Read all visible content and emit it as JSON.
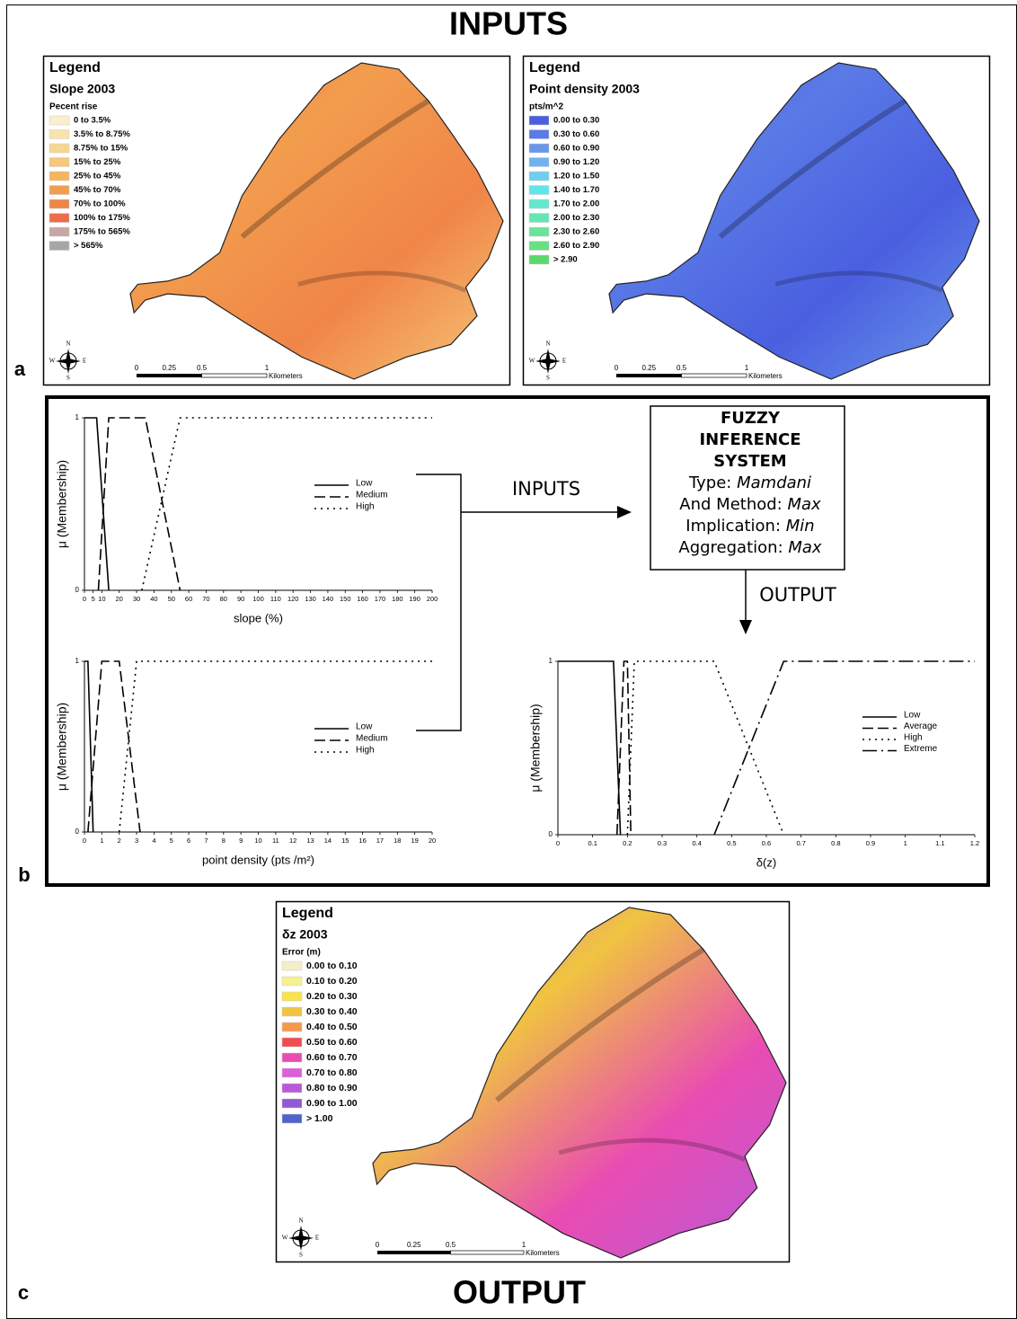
{
  "title": "INPUTS",
  "bottom_title": "OUTPUT",
  "panel_labels": [
    "a",
    "b",
    "c"
  ],
  "maps": [
    {
      "legend_title": "Legend",
      "layer_title": "Slope 2003",
      "unit": "Pecent rise",
      "classes": [
        {
          "label": "0 to 3.5%",
          "color": "#fbeecb"
        },
        {
          "label": "3.5% to 8.75%",
          "color": "#fae3a8"
        },
        {
          "label": "8.75% to 15%",
          "color": "#f8d690"
        },
        {
          "label": "15% to 25%",
          "color": "#f6c877"
        },
        {
          "label": "25% to 45%",
          "color": "#f4b55d"
        },
        {
          "label": "45% to 70%",
          "color": "#f29d4e"
        },
        {
          "label": "70% to 100%",
          "color": "#f08548"
        },
        {
          "label": "100% to 175%",
          "color": "#ee6c4d"
        },
        {
          "label": "175% to 565%",
          "color": "#c9a5a3"
        },
        {
          "label": "> 565%",
          "color": "#a6a6a6"
        }
      ],
      "scale_labels": [
        "0",
        "0.25",
        "0.5",
        "1",
        "Kilometers"
      ],
      "compass": [
        "N",
        "E",
        "S",
        "W"
      ]
    },
    {
      "legend_title": "Legend",
      "layer_title": "Point density 2003",
      "unit": "pts/m^2",
      "classes": [
        {
          "label": "0.00 to 0.30",
          "color": "#4a5fe0"
        },
        {
          "label": "0.30 to 0.60",
          "color": "#5a7ae6"
        },
        {
          "label": "0.60 to 0.90",
          "color": "#6a96ea"
        },
        {
          "label": "0.90 to 1.20",
          "color": "#6fb2ee"
        },
        {
          "label": "1.20 to 1.50",
          "color": "#6fcdf0"
        },
        {
          "label": "1.40 to 1.70",
          "color": "#5fe6e8"
        },
        {
          "label": "1.70 to 2.00",
          "color": "#63e8cc"
        },
        {
          "label": "2.00 to 2.30",
          "color": "#66e6b2"
        },
        {
          "label": "2.30 to 2.60",
          "color": "#6ae49a"
        },
        {
          "label": "2.60 to 2.90",
          "color": "#68e082"
        },
        {
          "label": "> 2.90",
          "color": "#5cd86a"
        }
      ],
      "scale_labels": [
        "0",
        "0.25",
        "0.5",
        "1",
        "Kilometers"
      ],
      "compass": [
        "N",
        "E",
        "S",
        "W"
      ]
    },
    {
      "legend_title": "Legend",
      "layer_title": "δz 2003",
      "unit": "Error (m)",
      "classes": [
        {
          "label": "0.00 to 0.10",
          "color": "#f3efc6"
        },
        {
          "label": "0.10 to 0.20",
          "color": "#f7f08e"
        },
        {
          "label": "0.20 to 0.30",
          "color": "#f6e34e"
        },
        {
          "label": "0.30 to 0.40",
          "color": "#f0c440"
        },
        {
          "label": "0.40 to 0.50",
          "color": "#f39a4a"
        },
        {
          "label": "0.50 to 0.60",
          "color": "#f04d50"
        },
        {
          "label": "0.60 to 0.70",
          "color": "#e94cb2"
        },
        {
          "label": "0.70 to 0.80",
          "color": "#dd5fdc"
        },
        {
          "label": "0.80 to 0.90",
          "color": "#b85ad8"
        },
        {
          "label": "0.90 to 1.00",
          "color": "#8f5ad4"
        },
        {
          "label": "> 1.00",
          "color": "#5064cc"
        }
      ],
      "scale_labels": [
        "0",
        "0.25",
        "0.5",
        "1",
        "Kilometers"
      ],
      "compass": [
        "N",
        "E",
        "S",
        "W"
      ]
    }
  ],
  "fis": {
    "title_lines": [
      "FUZZY",
      "INFERENCE",
      "SYSTEM"
    ],
    "rows": [
      {
        "key": "Type:",
        "value": "Mamdani"
      },
      {
        "key": "And Method:",
        "value": "Max"
      },
      {
        "key": "Implication:",
        "value": "Min"
      },
      {
        "key": "Aggregation:",
        "value": "Max"
      }
    ],
    "inputs_label": "INPUTS",
    "output_label": "OUTPUT"
  },
  "chart_data": [
    {
      "type": "line",
      "x_label": "slope (%)",
      "y_label": "μ (Membership)",
      "xlim": [
        0,
        200
      ],
      "xticks": [
        0,
        5,
        10,
        20,
        30,
        40,
        50,
        60,
        70,
        80,
        90,
        100,
        110,
        120,
        130,
        140,
        150,
        160,
        170,
        180,
        190,
        200
      ],
      "ylim": [
        0,
        1
      ],
      "yticks": [
        0,
        1
      ],
      "series": [
        {
          "name": "Low",
          "dash": "solid",
          "x": [
            0,
            7,
            14
          ],
          "values": [
            1,
            1,
            0
          ]
        },
        {
          "name": "Medium",
          "dash": "dashed",
          "x": [
            8,
            14,
            35,
            55
          ],
          "values": [
            0,
            1,
            1,
            0
          ]
        },
        {
          "name": "High",
          "dash": "dotted",
          "x": [
            33,
            55,
            200
          ],
          "values": [
            0,
            1,
            1
          ]
        }
      ]
    },
    {
      "type": "line",
      "x_label": "point density (pts /m²)",
      "y_label": "μ (Membership)",
      "xlim": [
        0,
        20
      ],
      "xticks": [
        0,
        1,
        2,
        3,
        4,
        5,
        6,
        7,
        8,
        9,
        10,
        11,
        12,
        13,
        14,
        15,
        16,
        17,
        18,
        19,
        20
      ],
      "ylim": [
        0,
        1
      ],
      "yticks": [
        0,
        1
      ],
      "series": [
        {
          "name": "Low",
          "dash": "solid",
          "x": [
            0,
            0.2,
            0.5
          ],
          "values": [
            1,
            1,
            0
          ]
        },
        {
          "name": "Medium",
          "dash": "dashed",
          "x": [
            0.2,
            1,
            2,
            3.2
          ],
          "values": [
            0,
            1,
            1,
            0
          ]
        },
        {
          "name": "High",
          "dash": "dotted",
          "x": [
            2,
            3,
            20
          ],
          "values": [
            0,
            1,
            1
          ]
        }
      ]
    },
    {
      "type": "line",
      "x_label": "δ(z)",
      "y_label": "μ (Membership)",
      "xlim": [
        0,
        1.2
      ],
      "xticks": [
        0,
        0.1,
        0.2,
        0.3,
        0.4,
        0.5,
        0.6,
        0.7,
        0.8,
        0.9,
        1,
        1.1,
        1.2
      ],
      "ylim": [
        0,
        1
      ],
      "yticks": [
        0,
        1
      ],
      "series": [
        {
          "name": "Low",
          "dash": "solid",
          "x": [
            0,
            0.16,
            0.18
          ],
          "values": [
            1,
            1,
            0
          ]
        },
        {
          "name": "Average",
          "dash": "dashed",
          "x": [
            0.17,
            0.19,
            0.2,
            0.21
          ],
          "values": [
            0,
            1,
            1,
            0
          ]
        },
        {
          "name": "High",
          "dash": "dotted",
          "x": [
            0.2,
            0.22,
            0.45,
            0.65
          ],
          "values": [
            0,
            1,
            1,
            0
          ]
        },
        {
          "name": "Extreme",
          "dash": "dashdot",
          "x": [
            0.45,
            0.65,
            1.2
          ],
          "values": [
            0,
            1,
            1
          ]
        }
      ]
    }
  ]
}
